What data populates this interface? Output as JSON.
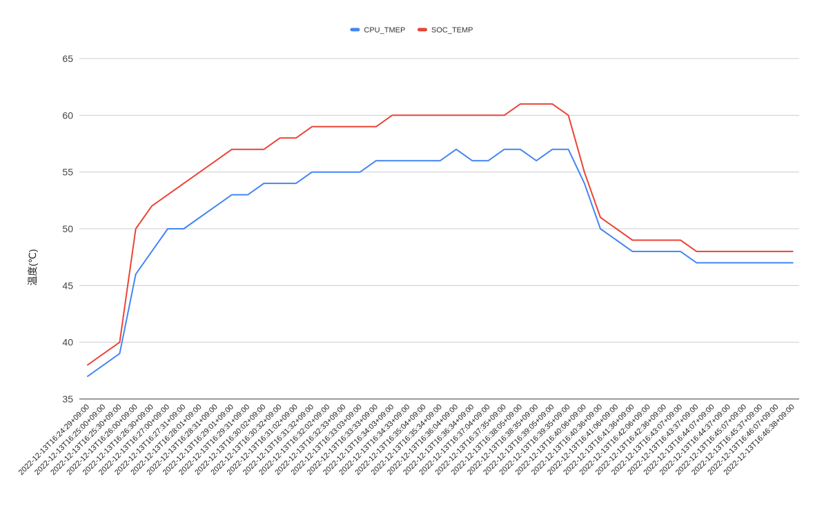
{
  "chart_data": {
    "type": "line",
    "ylabel": "温度(℃)",
    "xlabel": "",
    "ylim": [
      35,
      65
    ],
    "yticks": [
      35,
      40,
      45,
      50,
      55,
      60,
      65
    ],
    "grid": "horizontal",
    "legend_position": "top",
    "x": [
      "2022-12-13T16:24:29+09:00",
      "2022-12-13T16:25:00+09:00",
      "2022-12-13T16:25:30+09:00",
      "2022-12-13T16:26:00+09:00",
      "2022-12-13T16:26:30+09:00",
      "2022-12-13T16:27:00+09:00",
      "2022-12-13T16:27:31+09:00",
      "2022-12-13T16:28:01+09:00",
      "2022-12-13T16:28:31+09:00",
      "2022-12-13T16:29:01+09:00",
      "2022-12-13T16:29:31+09:00",
      "2022-12-13T16:30:02+09:00",
      "2022-12-13T16:30:32+09:00",
      "2022-12-13T16:31:02+09:00",
      "2022-12-13T16:31:32+09:00",
      "2022-12-13T16:32:02+09:00",
      "2022-12-13T16:32:33+09:00",
      "2022-12-13T16:33:03+09:00",
      "2022-12-13T16:33:33+09:00",
      "2022-12-13T16:34:03+09:00",
      "2022-12-13T16:34:33+09:00",
      "2022-12-13T16:35:04+09:00",
      "2022-12-13T16:35:34+09:00",
      "2022-12-13T16:36:04+09:00",
      "2022-12-13T16:36:34+09:00",
      "2022-12-13T16:37:04+09:00",
      "2022-12-13T16:37:35+09:00",
      "2022-12-13T16:38:05+09:00",
      "2022-12-13T16:38:35+09:00",
      "2022-12-13T16:39:05+09:00",
      "2022-12-13T16:39:35+09:00",
      "2022-12-13T16:40:06+09:00",
      "2022-12-13T16:40:36+09:00",
      "2022-12-13T16:41:06+09:00",
      "2022-12-13T16:41:36+09:00",
      "2022-12-13T16:42:06+09:00",
      "2022-12-13T16:42:36+09:00",
      "2022-12-13T16:43:07+09:00",
      "2022-12-13T16:43:37+09:00",
      "2022-12-13T16:44:07+09:00",
      "2022-12-13T16:44:37+09:00",
      "2022-12-13T16:45:07+09:00",
      "2022-12-13T16:45:37+09:00",
      "2022-12-13T16:46:07+09:00",
      "2022-12-13T16:46:38+09:00"
    ],
    "series": [
      {
        "name": "CPU_TMEP",
        "color": "#4285f4",
        "values": [
          37,
          38,
          39,
          46,
          48,
          50,
          50,
          51,
          52,
          53,
          53,
          54,
          54,
          54,
          55,
          55,
          55,
          55,
          56,
          56,
          56,
          56,
          56,
          57,
          56,
          56,
          57,
          57,
          56,
          57,
          57,
          54,
          50,
          49,
          48,
          48,
          48,
          48,
          47,
          47,
          47,
          47,
          47,
          47,
          47
        ]
      },
      {
        "name": "SOC_TEMP",
        "color": "#ea4335",
        "values": [
          38,
          39,
          40,
          50,
          52,
          53,
          54,
          55,
          56,
          57,
          57,
          57,
          58,
          58,
          59,
          59,
          59,
          59,
          59,
          60,
          60,
          60,
          60,
          60,
          60,
          60,
          60,
          61,
          61,
          61,
          60,
          55,
          51,
          50,
          49,
          49,
          49,
          49,
          48,
          48,
          48,
          48,
          48,
          48,
          48
        ]
      }
    ]
  }
}
